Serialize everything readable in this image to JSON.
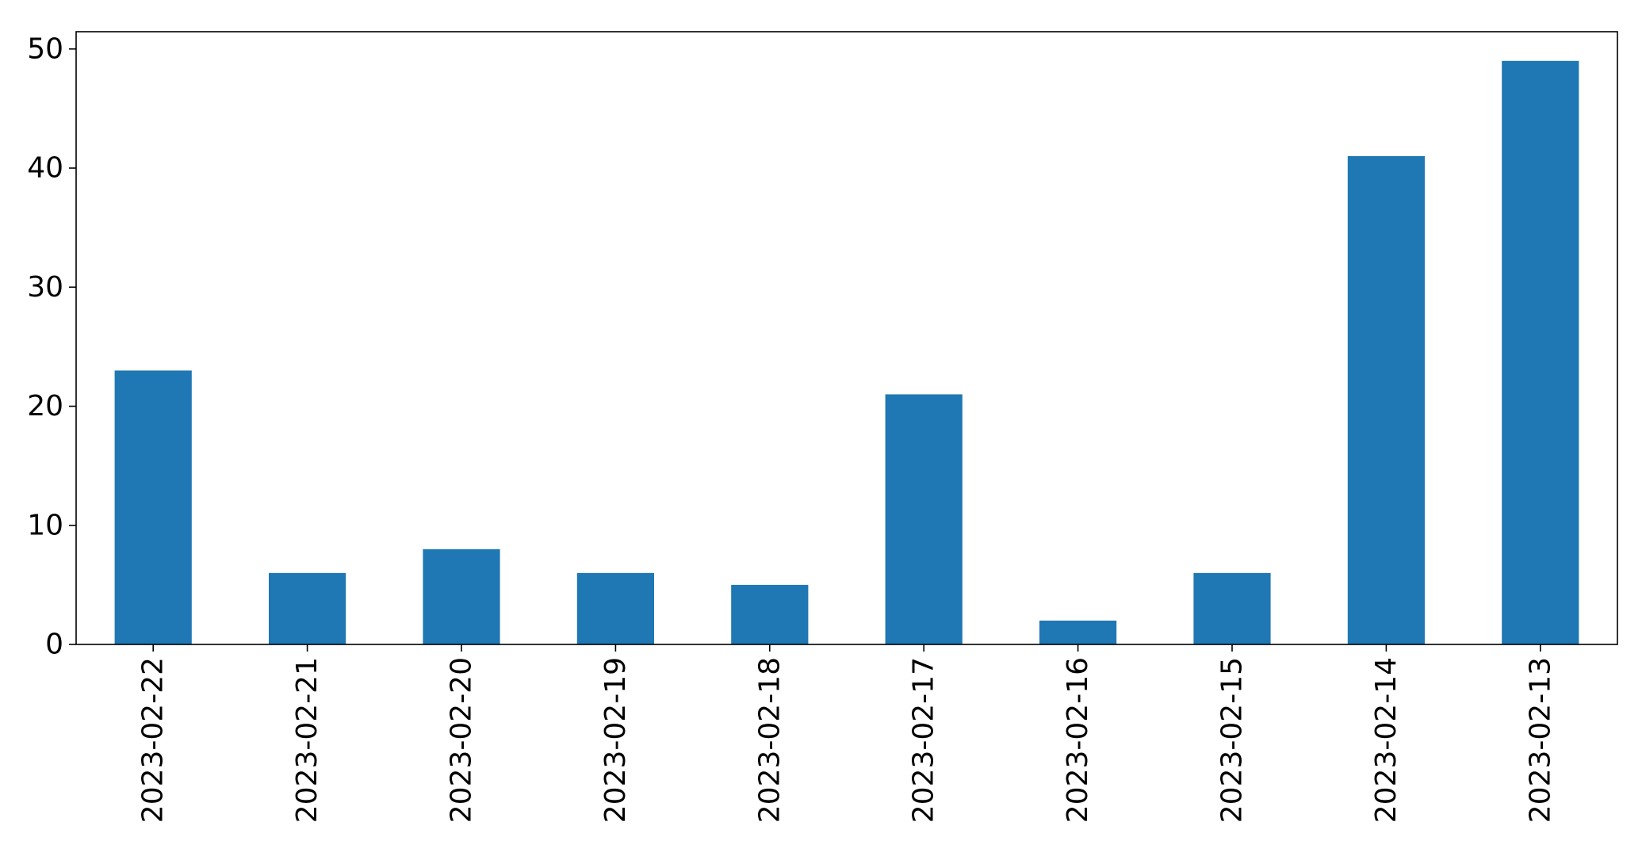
{
  "chart_data": {
    "type": "bar",
    "title": "",
    "xlabel": "",
    "ylabel": "",
    "categories": [
      "2023-02-22",
      "2023-02-21",
      "2023-02-20",
      "2023-02-19",
      "2023-02-18",
      "2023-02-17",
      "2023-02-16",
      "2023-02-15",
      "2023-02-14",
      "2023-02-13"
    ],
    "values": [
      23,
      6,
      8,
      6,
      5,
      21,
      2,
      6,
      41,
      49
    ],
    "ylim": [
      0,
      51.45
    ],
    "yticks": [
      0,
      10,
      20,
      30,
      40,
      50
    ],
    "ytick_labels": [
      "0",
      "10",
      "20",
      "30",
      "40",
      "50"
    ],
    "grid": false,
    "legend": null,
    "bar_color": "#1f77b4",
    "x_tick_rotation": "vertical"
  }
}
